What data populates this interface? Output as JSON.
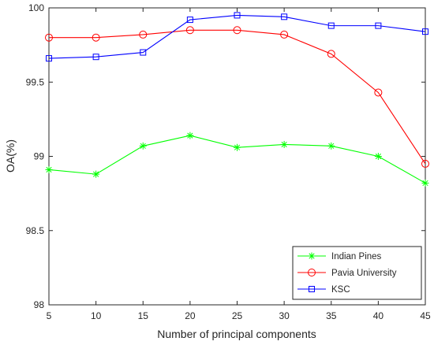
{
  "chart_data": {
    "type": "line",
    "title": "",
    "xlabel": "Number of principal components",
    "ylabel": "OA(%)",
    "x": [
      5,
      10,
      15,
      20,
      25,
      30,
      35,
      40,
      45
    ],
    "x_ticks": [
      "5",
      "10",
      "15",
      "20",
      "25",
      "30",
      "35",
      "40",
      "45"
    ],
    "xlim": [
      5,
      45
    ],
    "y_ticks": [
      "98",
      "98.5",
      "99",
      "99.5",
      "100"
    ],
    "ylim": [
      98,
      100
    ],
    "grid": false,
    "legend_position": "bottom-right",
    "series": [
      {
        "name": "Indian Pines",
        "color": "#00ff00",
        "marker": "asterisk",
        "values": [
          98.91,
          98.88,
          99.07,
          99.14,
          99.06,
          99.08,
          99.07,
          99.0,
          98.82
        ]
      },
      {
        "name": "Pavia University",
        "color": "#ff0000",
        "marker": "circle",
        "values": [
          99.8,
          99.8,
          99.82,
          99.85,
          99.85,
          99.82,
          99.69,
          99.43,
          98.95
        ]
      },
      {
        "name": "KSC",
        "color": "#0000ff",
        "marker": "square",
        "values": [
          99.66,
          99.67,
          99.7,
          99.92,
          99.95,
          99.94,
          99.88,
          99.88,
          99.84
        ]
      }
    ]
  }
}
